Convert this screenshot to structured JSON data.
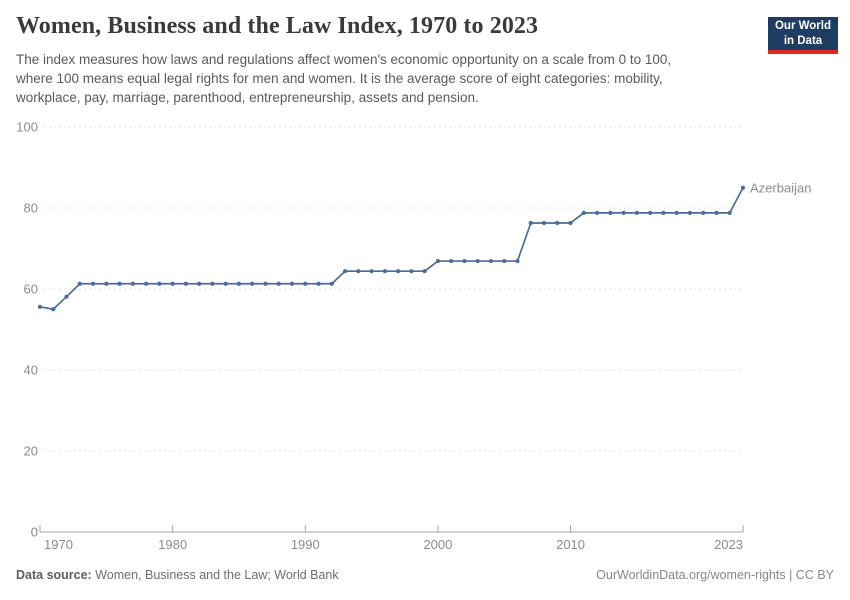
{
  "header": {
    "title": "Women, Business and the Law Index, 1970 to 2023",
    "subtitle_lines": [
      "The index measures how laws and regulations affect women's economic opportunity on a scale from 0 to 100,",
      "where 100 means equal legal rights for men and women. It is the average score of eight categories: mobility,",
      "workplace, pay, marriage, parenthood, entrepreneurship, assets and pension."
    ],
    "logo": {
      "line1": "Our World",
      "line2": "in Data",
      "bg_color": "#1d3d63",
      "bar_color": "#dc2a1e"
    }
  },
  "chart_data": {
    "type": "line",
    "title": "Women, Business and the Law Index, 1970 to 2023",
    "x": [
      1970,
      1971,
      1972,
      1973,
      1974,
      1975,
      1976,
      1977,
      1978,
      1979,
      1980,
      1981,
      1982,
      1983,
      1984,
      1985,
      1986,
      1987,
      1988,
      1989,
      1990,
      1991,
      1992,
      1993,
      1994,
      1995,
      1996,
      1997,
      1998,
      1999,
      2000,
      2001,
      2002,
      2003,
      2004,
      2005,
      2006,
      2007,
      2008,
      2009,
      2010,
      2011,
      2012,
      2013,
      2014,
      2015,
      2016,
      2017,
      2018,
      2019,
      2020,
      2021,
      2022,
      2023
    ],
    "series": [
      {
        "name": "Azerbaijan",
        "color": "#4C6A9C",
        "values": [
          55.6,
          55.0,
          58.1,
          61.3,
          61.3,
          61.3,
          61.3,
          61.3,
          61.3,
          61.3,
          61.3,
          61.3,
          61.3,
          61.3,
          61.3,
          61.3,
          61.3,
          61.3,
          61.3,
          61.3,
          61.3,
          61.3,
          61.3,
          64.4,
          64.4,
          64.4,
          64.4,
          64.4,
          64.4,
          64.4,
          66.9,
          66.9,
          66.9,
          66.9,
          66.9,
          66.9,
          66.9,
          76.3,
          76.3,
          76.3,
          76.3,
          78.8,
          78.8,
          78.8,
          78.8,
          78.8,
          78.8,
          78.8,
          78.8,
          78.8,
          78.8,
          78.8,
          78.8,
          85.0
        ]
      }
    ],
    "xlabel": "",
    "ylabel": "",
    "ylim": [
      0,
      100
    ],
    "yticks": [
      0,
      20,
      40,
      60,
      80,
      100
    ],
    "xticks": [
      1970,
      1980,
      1990,
      2000,
      2010,
      2023
    ],
    "grid": "horizontal-dashed",
    "legend_position": "end-of-line-label",
    "colors": {
      "grid": "#e2e2e2",
      "axis": "#a3a3a3",
      "tick_label": "#8c8c8c"
    }
  },
  "footer": {
    "source_label": "Data source:",
    "source_text": "Women, Business and the Law; World Bank",
    "link_text": "OurWorldinData.org/women-rights | CC BY"
  }
}
